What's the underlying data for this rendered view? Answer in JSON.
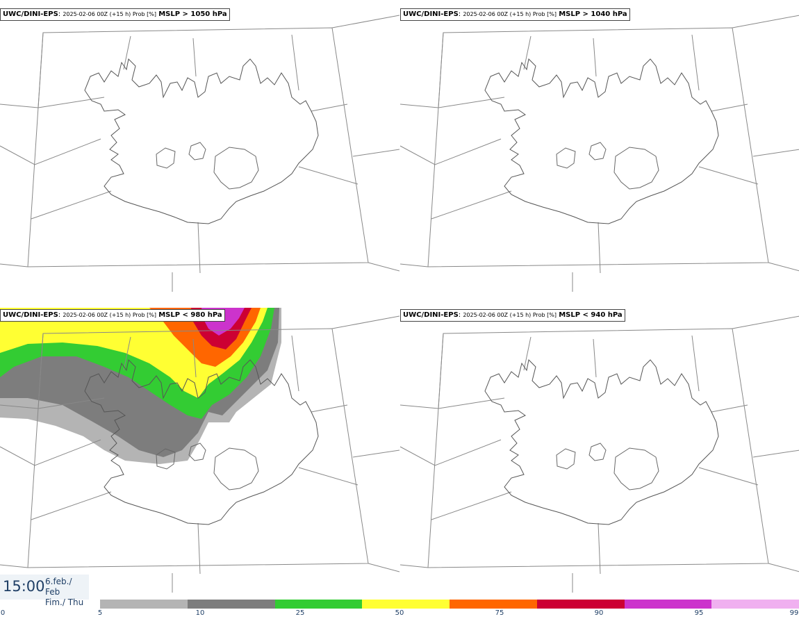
{
  "panels": [
    {
      "model": "UWC/DINI-EPS",
      "run": "2025-02-06 00Z (+15 h) Prob [%]",
      "threshold": "MSLP > 1050 hPa"
    },
    {
      "model": "UWC/DINI-EPS",
      "run": "2025-02-06 00Z (+15 h) Prob [%]",
      "threshold": "MSLP > 1040 hPa"
    },
    {
      "model": "UWC/DINI-EPS",
      "run": "2025-02-06 00Z (+15 h) Prob [%]",
      "threshold": "MSLP < 980 hPa"
    },
    {
      "model": "UWC/DINI-EPS",
      "run": "2025-02-06 00Z (+15 h) Prob [%]",
      "threshold": "MSLP < 940 hPa"
    }
  ],
  "valid_time": {
    "time": "15:00",
    "date_line1": "6.feb./ Feb",
    "date_line2": "Fim./ Thu"
  },
  "colorbar": {
    "colors": [
      "#b4b4b4",
      "#7d7d7d",
      "#33cc33",
      "#ffff33",
      "#ff6600",
      "#cc0033",
      "#cc33cc",
      "#f0b0f0"
    ],
    "labels": [
      "0",
      "5",
      "10",
      "25",
      "50",
      "75",
      "90",
      "95",
      "99"
    ]
  }
}
